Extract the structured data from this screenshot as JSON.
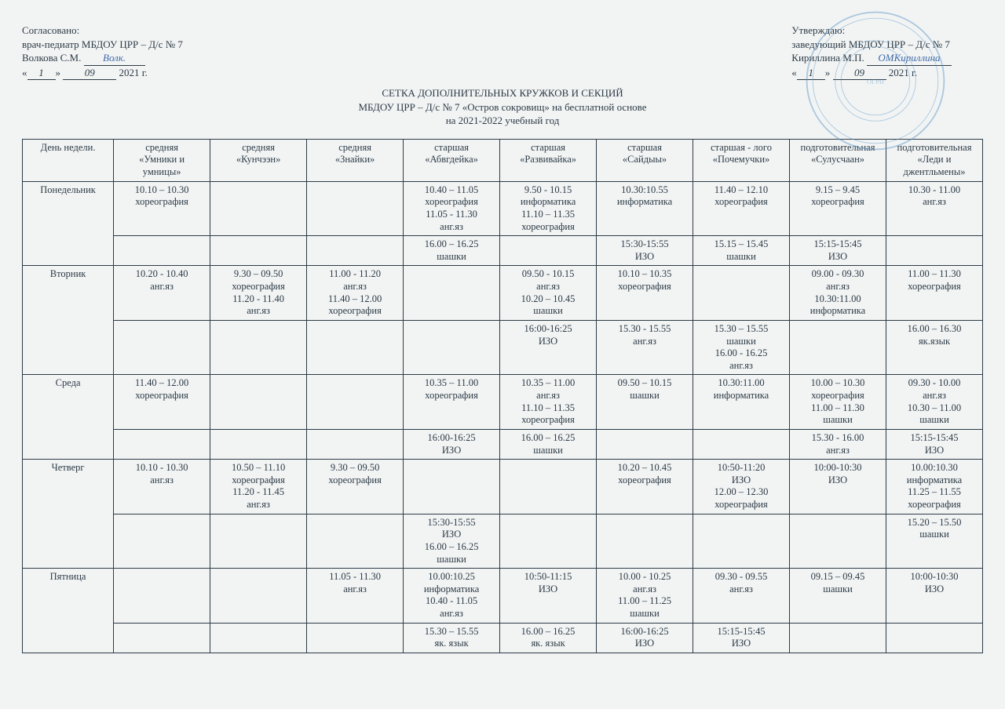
{
  "approval_left": {
    "line1": "Согласовано:",
    "line2": "врач-педиатр МБДОУ ЦРР – Д/с № 7",
    "name": "Волкова С.М.",
    "signature": "Волк.",
    "day": "1",
    "month": "09",
    "year": "2021 г."
  },
  "approval_right": {
    "line1": "Утверждаю:",
    "line2": "заведующий МБДОУ ЦРР – Д/с № 7",
    "name": "Кириллина М.П.",
    "signature": "ОМКириллина",
    "day": "1",
    "month": "09",
    "year": "2021 г."
  },
  "title": {
    "l1": "СЕТКА  ДОПОЛНИТЕЛЬНЫХ КРУЖКОВ И СЕКЦИЙ",
    "l2": "МБДОУ ЦРР – Д/с № 7 «Остров сокровищ» на бесплатной основе",
    "l3": "на 2021-2022 учебный год"
  },
  "table": {
    "header": [
      "День недели.",
      "средняя\n«Умники и\nумницы»",
      "средняя\n«Кунчээн»",
      "средняя\n«Знайки»",
      "старшая\n«Абвгдейка»",
      "старшая\n«Развивайка»",
      "старшая\n«Сайдыы»",
      "старшая - лого\n«Почемучки»",
      "подготовительная\n«Сулусчаан»",
      "подготовительная\n«Леди и\nджентльмены»"
    ],
    "rows": [
      {
        "day": "Понедельник",
        "rowspan": 2,
        "cells": [
          "10.10 – 10.30\nхореография",
          "",
          "",
          "10.40 – 11.05\nхореография\n11.05 - 11.30\nанг.яз",
          "9.50 - 10.15\nинформатика\n11.10 – 11.35\nхореография",
          "10.30:10.55\nинформатика",
          "11.40 – 12.10\nхореография",
          "9.15 – 9.45\nхореография",
          "10.30 - 11.00\nанг.яз"
        ]
      },
      {
        "cells": [
          "",
          "",
          "",
          "16.00 – 16.25\nшашки",
          "",
          "15:30-15:55\nИЗО",
          "15.15 – 15.45\nшашки",
          "15:15-15:45\nИЗО",
          ""
        ]
      },
      {
        "day": "Вторник",
        "rowspan": 2,
        "cells": [
          "10.20 - 10.40\nанг.яз",
          "9.30 – 09.50\nхореография\n11.20 - 11.40\nанг.яз",
          "11.00 - 11.20\nанг.яз\n11.40 – 12.00\nхореография",
          "",
          "09.50 - 10.15\nанг.яз\n10.20 – 10.45\nшашки",
          "10.10 – 10.35\nхореография",
          "",
          "09.00 - 09.30\nанг.яз\n10.30:11.00\nинформатика",
          "11.00 – 11.30\nхореография"
        ]
      },
      {
        "cells": [
          "",
          "",
          "",
          "",
          "16:00-16:25\nИЗО",
          "15.30 - 15.55\nанг.яз",
          "15.30 – 15.55\nшашки\n16.00 - 16.25\nанг.яз",
          "",
          "16.00 – 16.30\nяк.язык"
        ]
      },
      {
        "day": "Среда",
        "rowspan": 2,
        "cells": [
          "11.40 – 12.00\nхореография",
          "",
          "",
          "10.35 – 11.00\nхореография",
          "10.35 – 11.00\nанг.яз\n11.10 – 11.35\nхореография",
          "09.50 – 10.15\nшашки",
          "10.30:11.00\nинформатика",
          "10.00 – 10.30\nхореография\n11.00 – 11.30\nшашки",
          "09.30 - 10.00\nанг.яз\n10.30 – 11.00\nшашки"
        ]
      },
      {
        "cells": [
          "",
          "",
          "",
          "16:00-16:25\nИЗО",
          "16.00 – 16.25\nшашки",
          "",
          "",
          "15.30 - 16.00\nанг.яз",
          "15:15-15:45\nИЗО"
        ]
      },
      {
        "day": "Четверг",
        "rowspan": 2,
        "cells": [
          "10.10 - 10.30\nанг.яз",
          "10.50 – 11.10\nхореография\n11.20 - 11.45\nанг.яз",
          "9.30 – 09.50\nхореография",
          "",
          "",
          "10.20 – 10.45\nхореография",
          "10:50-11:20\nИЗО\n12.00 – 12.30\nхореография",
          "10:00-10:30\nИЗО",
          "10.00:10.30\nинформатика\n11.25 – 11.55\nхореография"
        ]
      },
      {
        "cells": [
          "",
          "",
          "",
          "15:30-15:55\nИЗО\n16.00 – 16.25\nшашки",
          "",
          "",
          "",
          "",
          "15.20 – 15.50\nшашки"
        ]
      },
      {
        "day": "Пятница",
        "rowspan": 2,
        "cells": [
          "",
          "",
          "11.05 - 11.30\nанг.яз",
          "10.00:10.25\nинформатика\n10.40 - 11.05\nанг.яз",
          "10:50-11:15\nИЗО",
          "10.00 - 10.25\nанг.яз\n11.00 – 11.25\nшашки",
          "09.30 - 09.55\nанг.яз",
          "09.15 – 09.45\nшашки",
          "10:00-10:30\nИЗО"
        ]
      },
      {
        "cells": [
          "",
          "",
          "",
          "15.30 – 15.55\nяк. язык",
          "16.00 – 16.25\nяк. язык",
          "16:00-16:25\nИЗО",
          "15:15-15:45\nИЗО",
          "",
          ""
        ]
      }
    ],
    "border_color": "#2c3a45",
    "background_color": "#f2f4f4"
  },
  "stamp": {
    "outer_color": "#5a95c5",
    "text_color": "#5a95c5"
  }
}
